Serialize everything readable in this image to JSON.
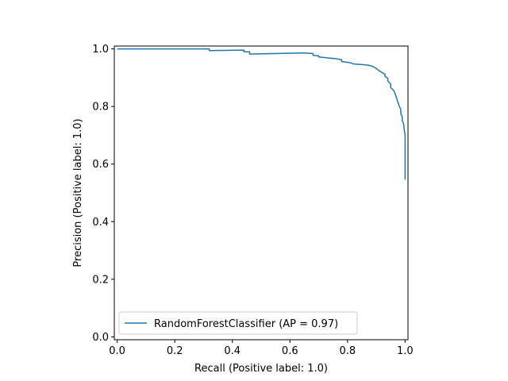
{
  "chart_data": {
    "type": "line",
    "title": "",
    "xlabel": "Recall (Positive label: 1.0)",
    "ylabel": "Precision (Positive label: 1.0)",
    "xlim": [
      -0.01,
      1.01
    ],
    "ylim": [
      -0.01,
      1.01
    ],
    "xticks": [
      0.0,
      0.2,
      0.4,
      0.6,
      0.8,
      1.0
    ],
    "xtick_labels": [
      "0.0",
      "0.2",
      "0.4",
      "0.6",
      "0.8",
      "1.0"
    ],
    "yticks": [
      0.0,
      0.2,
      0.4,
      0.6,
      0.8,
      1.0
    ],
    "ytick_labels": [
      "0.0",
      "0.2",
      "0.4",
      "0.6",
      "0.8",
      "1.0"
    ],
    "grid": false,
    "legend_position": "lower-left",
    "series": [
      {
        "name": "RandomForestClassifier (AP = 0.97)",
        "color": "#1f77b4",
        "points": [
          [
            0.0,
            1.0
          ],
          [
            0.32,
            1.0
          ],
          [
            0.32,
            0.994
          ],
          [
            0.44,
            0.996
          ],
          [
            0.44,
            0.99
          ],
          [
            0.46,
            0.99
          ],
          [
            0.46,
            0.982
          ],
          [
            0.64,
            0.986
          ],
          [
            0.68,
            0.984
          ],
          [
            0.68,
            0.978
          ],
          [
            0.7,
            0.976
          ],
          [
            0.7,
            0.972
          ],
          [
            0.76,
            0.966
          ],
          [
            0.78,
            0.962
          ],
          [
            0.78,
            0.956
          ],
          [
            0.81,
            0.952
          ],
          [
            0.82,
            0.948
          ],
          [
            0.86,
            0.945
          ],
          [
            0.88,
            0.942
          ],
          [
            0.89,
            0.938
          ],
          [
            0.9,
            0.932
          ],
          [
            0.91,
            0.924
          ],
          [
            0.92,
            0.918
          ],
          [
            0.93,
            0.912
          ],
          [
            0.93,
            0.905
          ],
          [
            0.94,
            0.898
          ],
          [
            0.94,
            0.888
          ],
          [
            0.95,
            0.878
          ],
          [
            0.95,
            0.866
          ],
          [
            0.96,
            0.856
          ],
          [
            0.965,
            0.845
          ],
          [
            0.97,
            0.83
          ],
          [
            0.975,
            0.815
          ],
          [
            0.98,
            0.8
          ],
          [
            0.985,
            0.79
          ],
          [
            0.985,
            0.775
          ],
          [
            0.99,
            0.765
          ],
          [
            0.99,
            0.75
          ],
          [
            0.995,
            0.74
          ],
          [
            0.997,
            0.72
          ],
          [
            1.0,
            0.7
          ],
          [
            1.0,
            0.546
          ]
        ]
      }
    ]
  }
}
